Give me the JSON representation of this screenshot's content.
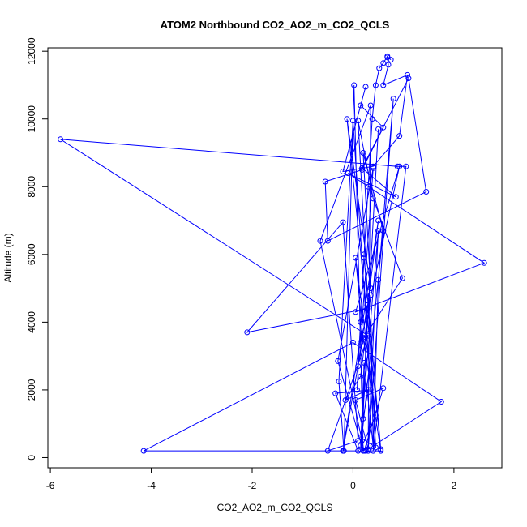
{
  "chart_data": {
    "type": "line",
    "title": "ATOM2 Northbound CO2_AO2_m_CO2_QCLS",
    "xlabel": "CO2_AO2_m_CO2_QCLS",
    "ylabel": "Altitude (m)",
    "xlim": [
      -6.05,
      2.95
    ],
    "ylim": [
      -300,
      12100
    ],
    "x_ticks": [
      -6,
      -4,
      -2,
      0,
      2
    ],
    "y_ticks": [
      0,
      2000,
      4000,
      6000,
      8000,
      10000,
      12000
    ],
    "marker": "open-circle",
    "grid": false,
    "legend": "none",
    "color": "#0000ff",
    "series": [
      {
        "x": [
          0.08,
          0.15,
          0.22,
          0.3,
          0.38,
          0.45,
          0.52,
          0.6,
          0.68,
          0.75,
          0.68,
          0.7,
          0.6,
          1.08,
          0.92,
          0.4,
          -0.2,
          0.25,
          0.15,
          0.6,
          0.18,
          -0.55,
          -0.5,
          1.45,
          1.1,
          0.18,
          0.85,
          -0.1,
          2.6,
          0.05,
          0.92,
          0.15,
          0.4,
          -0.3,
          0.2,
          0.02,
          -0.18,
          -0.28,
          0.0,
          0.35,
          -0.35,
          0.1,
          -4.15,
          0.0,
          1.75,
          0.25,
          0.55,
          0.2,
          -0.2,
          0.5,
          0.28,
          -2.1,
          -0.2,
          0.1,
          -0.5,
          0.3,
          -5.8,
          0.88,
          1.05,
          0.4,
          0.5,
          0.8,
          0.3,
          0.35,
          -0.65,
          0.22,
          0.6,
          0.05,
          0.3,
          0.5,
          0.15,
          0.45,
          0.1,
          0.4,
          0.98,
          0.2,
          0.05,
          0.45,
          0.15,
          0.6,
          0.2,
          0.35,
          -0.12,
          0.55,
          0.22,
          0.1,
          0.28,
          0.2,
          0.3,
          -0.15,
          0.15,
          0.35,
          0.4,
          0.22,
          0.15,
          0.5
        ],
        "y": [
          2000,
          4000,
          6000,
          8000,
          10000,
          11000,
          11500,
          11650,
          11850,
          11750,
          11820,
          11600,
          11000,
          11300,
          9500,
          8600,
          8450,
          10950,
          10400,
          9750,
          8500,
          8150,
          6400,
          7850,
          11200,
          8550,
          7700,
          8400,
          5750,
          4300,
          8600,
          3400,
          8550,
          2850,
          200,
          11000,
          200,
          2250,
          9950,
          2000,
          1900,
          200,
          200,
          3400,
          1650,
          200,
          200,
          3550,
          200,
          7000,
          4400,
          3700,
          6950,
          500,
          200,
          3600,
          9400,
          8600,
          8600,
          200,
          5250,
          10600,
          200,
          10400,
          6400,
          200,
          2050,
          1700,
          250,
          6700,
          600,
          300,
          9950,
          7650,
          5300,
          3500,
          5900,
          1250,
          250,
          6700,
          9000,
          5000,
          10000,
          250,
          5900,
          2700,
          4500,
          1150,
          2000,
          1700,
          2400,
          4800,
          350,
          2800,
          350,
          9700
        ]
      }
    ]
  }
}
